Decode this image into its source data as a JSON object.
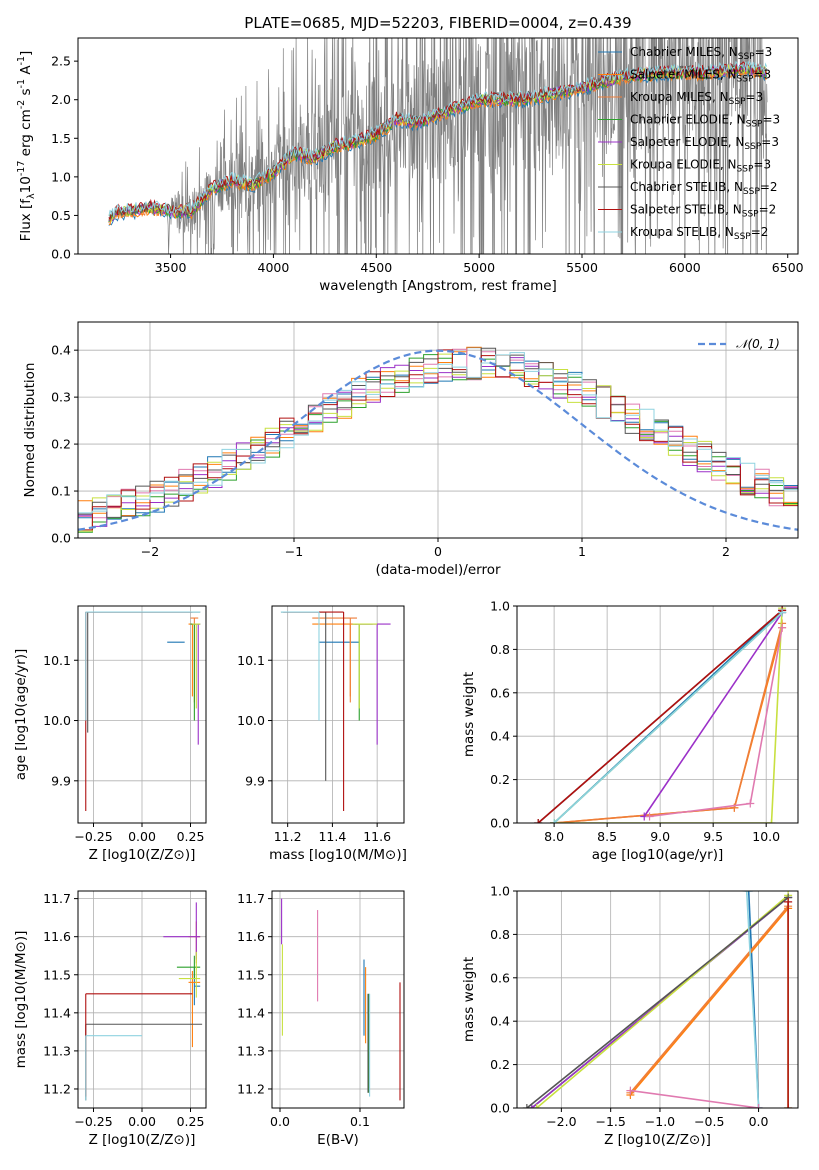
{
  "figure_title": "PLATE=0685, MJD=52203, FIBERID=0004, z=0.439",
  "series": [
    {
      "name": "Chabrier MILES",
      "nssp": "3",
      "color": "#1f77b4"
    },
    {
      "name": "Salpeter MILES",
      "nssp": "3",
      "color": "#ff7f0e"
    },
    {
      "name": "Kroupa MILES",
      "nssp": "3",
      "color": "#ee7e3a"
    },
    {
      "name": "Chabrier ELODIE",
      "nssp": "3",
      "color": "#2ca02c"
    },
    {
      "name": "Salpeter ELODIE",
      "nssp": "3",
      "color": "#9b30c8"
    },
    {
      "name": "Kroupa ELODIE",
      "nssp": "3",
      "color": "#c8e040"
    },
    {
      "name": "Chabrier STELIB",
      "nssp": "2",
      "color": "#555555"
    },
    {
      "name": "Salpeter STELIB",
      "nssp": "2",
      "color": "#b01010"
    },
    {
      "name": "Kroupa STELIB",
      "nssp": "2",
      "color": "#8fd3e0"
    }
  ],
  "legend_nssp_label": "N",
  "legend_nssp_sub": "SSP",
  "chart_data": [
    {
      "id": "spectrum",
      "type": "line",
      "title": "PLATE=0685, MJD=52203, FIBERID=0004, z=0.439",
      "xlabel": "wavelength [Angstrom, rest frame]",
      "ylabel_parts": [
        "Flux [f",
        "λ",
        "10",
        "-17",
        " erg cm",
        "-2",
        " s",
        "-1",
        " A",
        "-1",
        "]"
      ],
      "xlim": [
        3050,
        6550
      ],
      "ylim": [
        0,
        2.8
      ],
      "xticks": [
        3500,
        4000,
        4500,
        5000,
        5500,
        6000,
        6500
      ],
      "yticks": [
        0.0,
        0.5,
        1.0,
        1.5,
        2.0,
        2.5
      ],
      "data_color": "#808080",
      "data_extent": [
        3200,
        6400
      ],
      "noisy_region": [
        3480,
        6400
      ],
      "continuum_knots": [
        [
          3200,
          0.45
        ],
        [
          3250,
          0.55
        ],
        [
          3300,
          0.55
        ],
        [
          3400,
          0.6
        ],
        [
          3500,
          0.55
        ],
        [
          3600,
          0.55
        ],
        [
          3700,
          0.85
        ],
        [
          3800,
          0.95
        ],
        [
          3900,
          0.9
        ],
        [
          4000,
          1.05
        ],
        [
          4100,
          1.3
        ],
        [
          4200,
          1.25
        ],
        [
          4300,
          1.4
        ],
        [
          4400,
          1.45
        ],
        [
          4500,
          1.55
        ],
        [
          4600,
          1.75
        ],
        [
          4700,
          1.7
        ],
        [
          4800,
          1.8
        ],
        [
          4900,
          1.9
        ],
        [
          5000,
          2.0
        ],
        [
          5200,
          2.0
        ],
        [
          5300,
          2.05
        ],
        [
          5500,
          2.15
        ],
        [
          5700,
          2.3
        ],
        [
          5900,
          2.35
        ],
        [
          6100,
          2.35
        ],
        [
          6300,
          2.4
        ],
        [
          6400,
          2.35
        ]
      ]
    },
    {
      "id": "residuals",
      "type": "histogram",
      "xlabel": "(data-model)/error",
      "ylabel": "Normed distribution",
      "xlim": [
        -2.5,
        2.5
      ],
      "ylim": [
        0,
        0.46
      ],
      "xticks": [
        -2,
        -1,
        0,
        1,
        2
      ],
      "yticks": [
        0.0,
        0.1,
        0.2,
        0.3,
        0.4
      ],
      "bins": [
        -2.5,
        -2.4,
        -2.3,
        -2.2,
        -2.1,
        -2.0,
        -1.9,
        -1.8,
        -1.7,
        -1.6,
        -1.5,
        -1.4,
        -1.3,
        -1.2,
        -1.1,
        -1.0,
        -0.9,
        -0.8,
        -0.7,
        -0.6,
        -0.5,
        -0.4,
        -0.3,
        -0.2,
        -0.1,
        0.0,
        0.1,
        0.2,
        0.3,
        0.4,
        0.5,
        0.6,
        0.7,
        0.8,
        0.9,
        1.0,
        1.1,
        1.2,
        1.3,
        1.4,
        1.5,
        1.6,
        1.7,
        1.8,
        1.9,
        2.0,
        2.1,
        2.2,
        2.3,
        2.4,
        2.5
      ],
      "reference_curve": {
        "label": "𝒩(0, 1)",
        "color": "#5b8bd9"
      }
    },
    {
      "id": "age-vs-Z",
      "type": "errorbar",
      "xlabel": "Z [log10(Z/Z⊙)]",
      "ylabel": "age  [log10(age/yr)]",
      "xlim": [
        -0.33,
        0.33
      ],
      "ylim": [
        9.83,
        10.19
      ],
      "xticks": [
        -0.25,
        0.0,
        0.25
      ],
      "yticks": [
        9.9,
        10.0,
        10.1
      ],
      "bars": [
        {
          "s": 0,
          "x": 0.2,
          "xerr": [
            0.07,
            0.02
          ],
          "y": 10.13,
          "yerr": [
            0,
            0
          ]
        },
        {
          "s": 1,
          "x": 0.26,
          "xerr": [
            0.02,
            0.02
          ],
          "y": 10.16,
          "yerr": [
            0.12,
            0.0
          ]
        },
        {
          "s": 2,
          "x": 0.27,
          "xerr": [
            0.02,
            0.02
          ],
          "y": 10.17,
          "yerr": [
            0.14,
            0.0
          ]
        },
        {
          "s": 3,
          "x": 0.27,
          "xerr": [
            0.02,
            0.03
          ],
          "y": 10.16,
          "yerr": [
            0.16,
            0.0
          ]
        },
        {
          "s": 4,
          "x": 0.29,
          "xerr": [
            0.02,
            0.01
          ],
          "y": 10.16,
          "yerr": [
            0.2,
            0.0
          ]
        },
        {
          "s": 5,
          "x": 0.28,
          "xerr": [
            0.02,
            0.02
          ],
          "y": 10.16,
          "yerr": [
            0.14,
            0.0
          ]
        },
        {
          "s": 6,
          "x": -0.28,
          "xerr": [
            0.0,
            0.58
          ],
          "y": 10.18,
          "yerr": [
            0.2,
            0.0
          ]
        },
        {
          "s": 7,
          "x": -0.29,
          "xerr": [
            0.0,
            0.55
          ],
          "y": 10.18,
          "yerr": [
            0.33,
            0.0
          ]
        },
        {
          "s": 8,
          "x": -0.29,
          "xerr": [
            0.0,
            0.59
          ],
          "y": 10.18,
          "yerr": [
            0.18,
            0.0
          ]
        }
      ]
    },
    {
      "id": "age-vs-mass",
      "type": "errorbar",
      "xlabel": "mass [log10(M/M⊙)]",
      "ylabel": "",
      "xlim": [
        11.13,
        11.72
      ],
      "ylim": [
        9.83,
        10.19
      ],
      "xticks": [
        11.2,
        11.4,
        11.6
      ],
      "yticks": [
        9.9,
        10.0,
        10.1
      ],
      "bars": [
        {
          "s": 0,
          "x": 11.43,
          "xerr": [
            0.09,
            0.09
          ],
          "y": 10.13,
          "yerr": [
            0,
            0
          ]
        },
        {
          "s": 1,
          "x": 11.48,
          "xerr": [
            0.17,
            0.03
          ],
          "y": 10.16,
          "yerr": [
            0.12,
            0.0
          ]
        },
        {
          "s": 2,
          "x": 11.48,
          "xerr": [
            0.17,
            0.03
          ],
          "y": 10.17,
          "yerr": [
            0.14,
            0.0
          ]
        },
        {
          "s": 3,
          "x": 11.52,
          "xerr": [
            0.03,
            0.06
          ],
          "y": 10.16,
          "yerr": [
            0.16,
            0.0
          ]
        },
        {
          "s": 4,
          "x": 11.6,
          "xerr": [
            0.1,
            0.06
          ],
          "y": 10.16,
          "yerr": [
            0.2,
            0.0
          ]
        },
        {
          "s": 5,
          "x": 11.52,
          "xerr": [
            0.03,
            0.08
          ],
          "y": 10.16,
          "yerr": [
            0.14,
            0.0
          ]
        },
        {
          "s": 6,
          "x": 11.37,
          "xerr": [
            0.2,
            0.0
          ],
          "y": 10.18,
          "yerr": [
            0.28,
            0.0
          ]
        },
        {
          "s": 7,
          "x": 11.45,
          "xerr": [
            0.27,
            0.0
          ],
          "y": 10.18,
          "yerr": [
            0.33,
            0.0
          ]
        },
        {
          "s": 8,
          "x": 11.34,
          "xerr": [
            0.17,
            0.0
          ],
          "y": 10.18,
          "yerr": [
            0.18,
            0.0
          ]
        }
      ]
    },
    {
      "id": "mass-weight-vs-age",
      "type": "line",
      "xlabel": "age  [log10(age/yr)]",
      "ylabel": "mass weight",
      "xlim": [
        7.65,
        10.3
      ],
      "ylim": [
        0,
        1
      ],
      "xticks": [
        8.0,
        8.5,
        9.0,
        9.5,
        10.0
      ],
      "yticks": [
        0.0,
        0.2,
        0.4,
        0.6,
        0.8,
        1.0
      ],
      "lines": [
        {
          "s": 0,
          "pts": [
            [
              8.0,
              0.0
            ],
            [
              10.15,
              0.98
            ]
          ]
        },
        {
          "s": 1,
          "pts": [
            [
              8.0,
              0.0
            ],
            [
              9.7,
              0.07
            ],
            [
              10.15,
              0.9
            ]
          ]
        },
        {
          "s": 2,
          "pts": [
            [
              8.0,
              0.0
            ],
            [
              9.7,
              0.07
            ],
            [
              10.15,
              0.92
            ]
          ]
        },
        {
          "s": 3,
          "pts": [
            [
              8.0,
              0.0
            ],
            [
              10.15,
              0.97
            ]
          ]
        },
        {
          "s": 4,
          "pts": [
            [
              8.85,
              0.03
            ],
            [
              10.15,
              0.97
            ]
          ]
        },
        {
          "s": 5,
          "pts": [
            [
              8.0,
              0.0
            ],
            [
              10.05,
              0.0
            ],
            [
              10.15,
              0.99
            ]
          ]
        },
        {
          "s": 6,
          "pts": [
            [
              7.85,
              0.0
            ],
            [
              10.15,
              0.98
            ]
          ]
        },
        {
          "s": 7,
          "pts": [
            [
              7.85,
              0.0
            ],
            [
              10.15,
              0.98
            ]
          ]
        },
        {
          "s": 8,
          "pts": [
            [
              8.0,
              0.0
            ],
            [
              10.15,
              0.97
            ]
          ]
        },
        {
          "s": 2,
          "pts": [
            [
              8.9,
              0.03
            ],
            [
              9.85,
              0.09
            ],
            [
              10.15,
              0.9
            ]
          ],
          "alt": "#e07ab0"
        }
      ]
    },
    {
      "id": "mass-vs-Z",
      "type": "errorbar",
      "xlabel": "Z [log10(Z/Z⊙)]",
      "ylabel": "mass [log10(M/M⊙)]",
      "xlim": [
        -0.33,
        0.33
      ],
      "ylim": [
        11.15,
        11.72
      ],
      "xticks": [
        -0.25,
        0.0,
        0.25
      ],
      "yticks": [
        11.2,
        11.3,
        11.4,
        11.5,
        11.6,
        11.7
      ],
      "bars": [
        {
          "s": 0,
          "x": 0.27,
          "xerr": [
            0.0,
            0.03
          ],
          "y": 11.47,
          "yerr": [
            0.05,
            0.05
          ]
        },
        {
          "s": 1,
          "x": 0.26,
          "xerr": [
            0.02,
            0.04
          ],
          "y": 11.48,
          "yerr": [
            0.17,
            0.03
          ]
        },
        {
          "s": 2,
          "x": 0.28,
          "xerr": [
            0.04,
            0.02
          ],
          "y": 11.6,
          "yerr": [
            0.07,
            0.04
          ]
        },
        {
          "s": 3,
          "x": 0.27,
          "xerr": [
            0.09,
            0.03
          ],
          "y": 11.52,
          "yerr": [
            0.03,
            0.03
          ]
        },
        {
          "s": 4,
          "x": 0.28,
          "xerr": [
            0.17,
            0.02
          ],
          "y": 11.6,
          "yerr": [
            0.06,
            0.09
          ]
        },
        {
          "s": 5,
          "x": 0.28,
          "xerr": [
            0.09,
            0.02
          ],
          "y": 11.49,
          "yerr": [
            0.05,
            0.07
          ]
        },
        {
          "s": 6,
          "x": -0.29,
          "xerr": [
            0.0,
            0.6
          ],
          "y": 11.37,
          "yerr": [
            0.2,
            0.0
          ]
        },
        {
          "s": 7,
          "x": -0.29,
          "xerr": [
            0.0,
            0.55
          ],
          "y": 11.45,
          "yerr": [
            0.27,
            0.0
          ]
        },
        {
          "s": 8,
          "x": -0.29,
          "xerr": [
            0.0,
            0.29
          ],
          "y": 11.34,
          "yerr": [
            0.17,
            0.0
          ]
        }
      ]
    },
    {
      "id": "mass-vs-EBV",
      "type": "errorbar",
      "xlabel": "E(B-V)",
      "ylabel": "",
      "xlim": [
        -0.01,
        0.155
      ],
      "ylim": [
        11.15,
        11.72
      ],
      "xticks": [
        0.0,
        0.1
      ],
      "yticks": [
        11.2,
        11.3,
        11.4,
        11.5,
        11.6,
        11.7
      ],
      "bars": [
        {
          "s": 0,
          "x": 0.105,
          "xerr": [
            0,
            0
          ],
          "y": 11.43,
          "yerr": [
            0.09,
            0.11
          ]
        },
        {
          "s": 1,
          "x": 0.107,
          "xerr": [
            0,
            0
          ],
          "y": 11.45,
          "yerr": [
            0.13,
            0.07
          ]
        },
        {
          "s": 2,
          "x": 0.047,
          "xerr": [
            0,
            0
          ],
          "y": 11.55,
          "yerr": [
            0.12,
            0.12
          ]
        },
        {
          "s": 3,
          "x": 0.111,
          "xerr": [
            0,
            0
          ],
          "y": 11.37,
          "yerr": [
            0.18,
            0.08
          ]
        },
        {
          "s": 4,
          "x": 0.002,
          "xerr": [
            0,
            0
          ],
          "y": 11.65,
          "yerr": [
            0.07,
            0.05
          ]
        },
        {
          "s": 5,
          "x": 0.003,
          "xerr": [
            0,
            0
          ],
          "y": 11.47,
          "yerr": [
            0.13,
            0.11
          ]
        },
        {
          "s": 6,
          "x": 0.11,
          "xerr": [
            0,
            0
          ],
          "y": 11.33,
          "yerr": [
            0.14,
            0.12
          ]
        },
        {
          "s": 7,
          "x": 0.15,
          "xerr": [
            0,
            0
          ],
          "y": 11.33,
          "yerr": [
            0.16,
            0.15
          ]
        },
        {
          "s": 8,
          "x": 0.112,
          "xerr": [
            0,
            0
          ],
          "y": 11.33,
          "yerr": [
            0.15,
            0.12
          ]
        }
      ]
    },
    {
      "id": "mass-weight-vs-Z",
      "type": "line",
      "xlabel": "Z [log10(Z/Z⊙)]",
      "ylabel": "mass weight",
      "xlim": [
        -2.45,
        0.4
      ],
      "ylim": [
        0,
        1
      ],
      "xticks": [
        -2.0,
        -1.5,
        -1.0,
        -0.5,
        0.0
      ],
      "yticks": [
        0.0,
        0.2,
        0.4,
        0.6,
        0.8,
        1.0
      ],
      "lines": [
        {
          "s": 0,
          "pts": [
            [
              -0.1,
              1.0
            ],
            [
              0.0,
              0.0
            ]
          ]
        },
        {
          "s": 1,
          "pts": [
            [
              -1.3,
              0.06
            ],
            [
              0.3,
              0.92
            ]
          ]
        },
        {
          "s": 2,
          "pts": [
            [
              -1.3,
              0.07
            ],
            [
              0.3,
              0.93
            ]
          ]
        },
        {
          "s": 3,
          "pts": [
            [
              -2.3,
              0.0
            ],
            [
              0.3,
              0.97
            ]
          ]
        },
        {
          "s": 4,
          "pts": [
            [
              -2.3,
              0.0
            ],
            [
              0.3,
              0.97
            ]
          ]
        },
        {
          "s": 5,
          "pts": [
            [
              -2.25,
              0.0
            ],
            [
              0.3,
              0.98
            ],
            [
              0.3,
              0.0
            ]
          ]
        },
        {
          "s": 6,
          "pts": [
            [
              -2.35,
              0.0
            ],
            [
              0.3,
              0.97
            ]
          ]
        },
        {
          "s": 7,
          "pts": [
            [
              0.3,
              0.0
            ],
            [
              0.3,
              0.95
            ]
          ]
        },
        {
          "s": 8,
          "pts": [
            [
              -0.12,
              1.0
            ],
            [
              0.0,
              0.0
            ]
          ]
        },
        {
          "s": 2,
          "pts": [
            [
              -1.3,
              0.08
            ],
            [
              0.0,
              0.0
            ]
          ],
          "alt": "#e07ab0"
        }
      ]
    }
  ]
}
